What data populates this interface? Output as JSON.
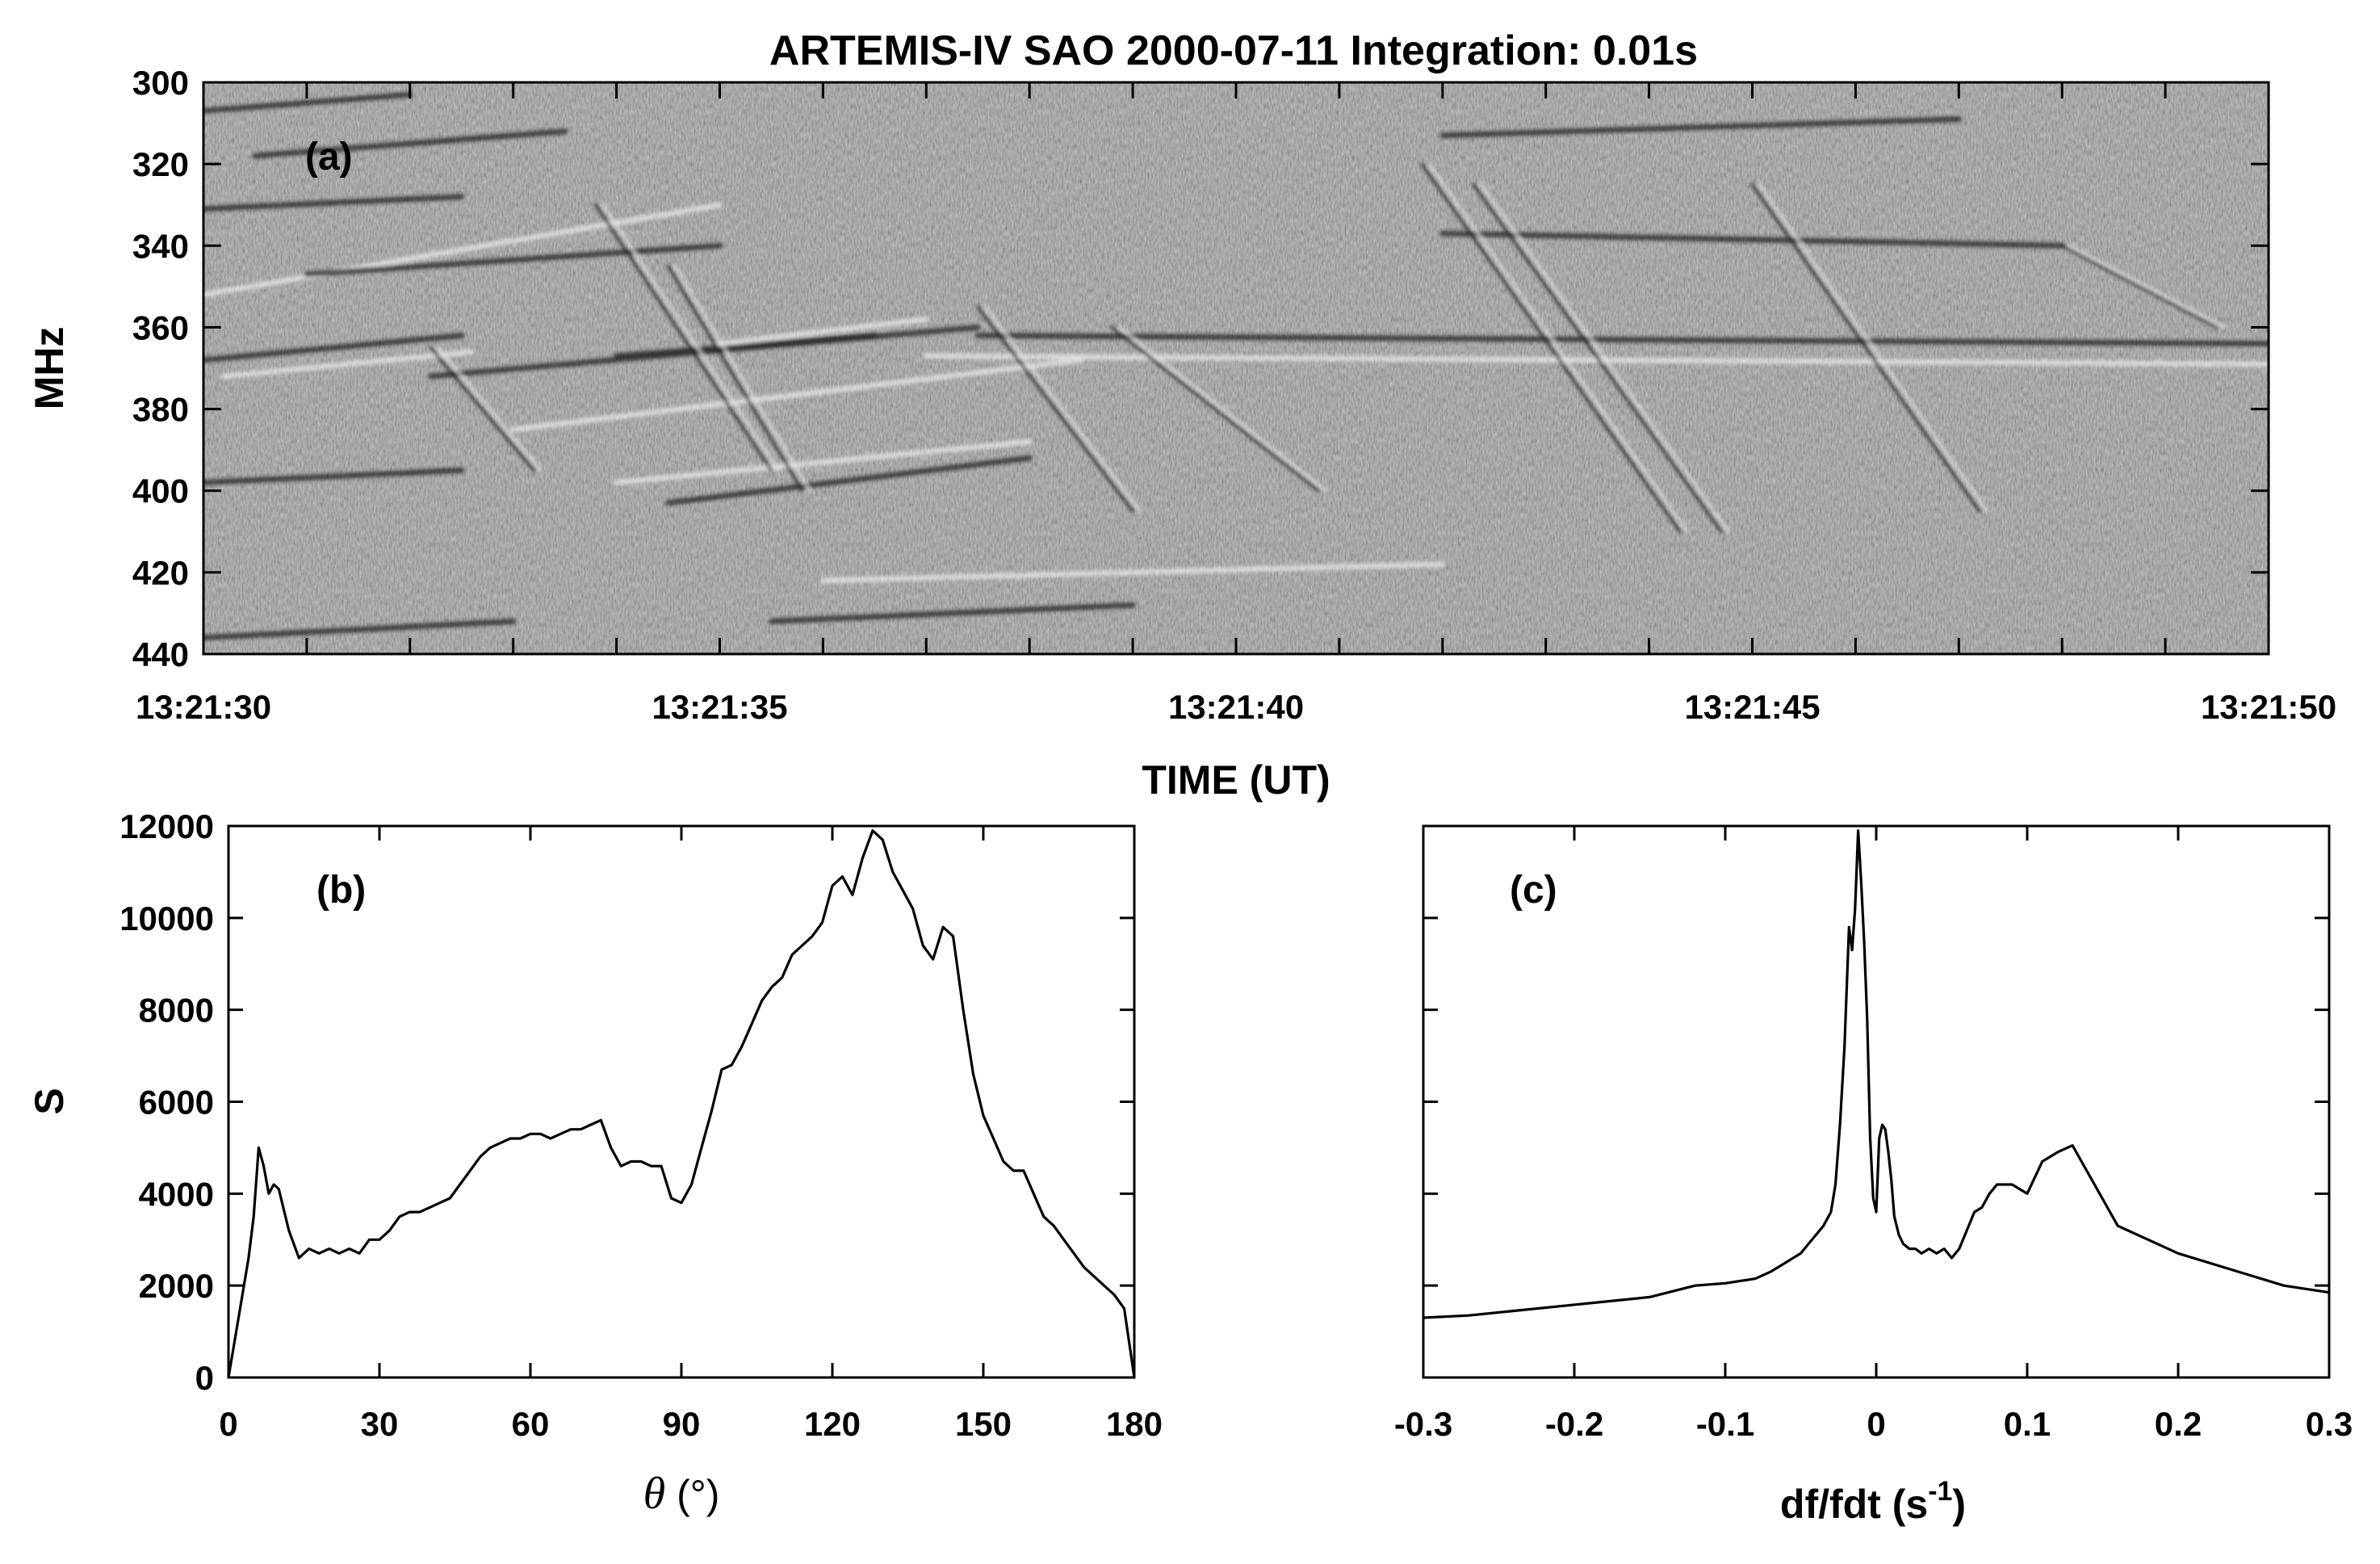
{
  "figure_title": "ARTEMIS-IV  SAO 2000-07-11   Integration: 0.01s",
  "chart_data": [
    {
      "id": "a",
      "type": "heatmap",
      "panel_label": "(a)",
      "xlabel": "TIME (UT)",
      "ylabel": "MHz",
      "x_ticks": [
        "13:21:30",
        "13:21:35",
        "13:21:40",
        "13:21:45",
        "13:21:50"
      ],
      "xlim_seconds": [
        0,
        20
      ],
      "ylim": [
        300,
        440
      ],
      "y_inverted": true,
      "y_ticks": [
        300,
        320,
        340,
        360,
        380,
        400,
        420,
        440
      ],
      "colormap": "gray",
      "features": {
        "drifting_lanes": [
          {
            "t": [
              0.0,
              2.0
            ],
            "f": [
              307,
              303
            ],
            "tone": "dark"
          },
          {
            "t": [
              0.5,
              3.5
            ],
            "f": [
              318,
              312
            ],
            "tone": "dark"
          },
          {
            "t": [
              0.0,
              2.5
            ],
            "f": [
              331,
              328
            ],
            "tone": "dark"
          },
          {
            "t": [
              0.0,
              5.0
            ],
            "f": [
              352,
              330
            ],
            "tone": "light"
          },
          {
            "t": [
              1.0,
              5.0
            ],
            "f": [
              347,
              340
            ],
            "tone": "dark"
          },
          {
            "t": [
              0.0,
              2.5
            ],
            "f": [
              368,
              362
            ],
            "tone": "dark"
          },
          {
            "t": [
              0.2,
              2.6
            ],
            "f": [
              372,
              366
            ],
            "tone": "light"
          },
          {
            "t": [
              2.2,
              7.5
            ],
            "f": [
              372,
              360
            ],
            "tone": "dark"
          },
          {
            "t": [
              4.0,
              6.5
            ],
            "f": [
              367,
              362
            ],
            "tone": "dark"
          },
          {
            "t": [
              5.0,
              7.0
            ],
            "f": [
              364,
              358
            ],
            "tone": "light"
          },
          {
            "t": [
              3.0,
              8.5
            ],
            "f": [
              385,
              368
            ],
            "tone": "light"
          },
          {
            "t": [
              0.0,
              2.5
            ],
            "f": [
              398,
              395
            ],
            "tone": "dark"
          },
          {
            "t": [
              4.5,
              8.0
            ],
            "f": [
              403,
              392
            ],
            "tone": "dark"
          },
          {
            "t": [
              4.0,
              8.0
            ],
            "f": [
              398,
              388
            ],
            "tone": "light"
          },
          {
            "t": [
              7.5,
              20.0
            ],
            "f": [
              362,
              364
            ],
            "tone": "dark"
          },
          {
            "t": [
              7.0,
              20.0
            ],
            "f": [
              367,
              369
            ],
            "tone": "light"
          },
          {
            "t": [
              12.0,
              18.0
            ],
            "f": [
              337,
              340
            ],
            "tone": "dark"
          },
          {
            "t": [
              0.0,
              3.0
            ],
            "f": [
              436,
              432
            ],
            "tone": "dark"
          },
          {
            "t": [
              5.5,
              9.0
            ],
            "f": [
              432,
              428
            ],
            "tone": "dark"
          },
          {
            "t": [
              6.0,
              12.0
            ],
            "f": [
              422,
              418
            ],
            "tone": "light"
          },
          {
            "t": [
              12.0,
              17.0
            ],
            "f": [
              313,
              309
            ],
            "tone": "dark"
          }
        ],
        "drifting_stripes": [
          {
            "t": [
              2.2,
              3.2
            ],
            "f": [
              365,
              395
            ]
          },
          {
            "t": [
              3.8,
              5.5
            ],
            "f": [
              330,
              395
            ]
          },
          {
            "t": [
              4.5,
              5.8
            ],
            "f": [
              345,
              400
            ]
          },
          {
            "t": [
              7.5,
              9.0
            ],
            "f": [
              355,
              405
            ]
          },
          {
            "t": [
              8.8,
              10.8
            ],
            "f": [
              360,
              400
            ]
          },
          {
            "t": [
              11.8,
              14.3
            ],
            "f": [
              320,
              410
            ]
          },
          {
            "t": [
              12.3,
              14.7
            ],
            "f": [
              325,
              410
            ]
          },
          {
            "t": [
              15.0,
              17.2
            ],
            "f": [
              325,
              405
            ]
          },
          {
            "t": [
              18.0,
              19.5
            ],
            "f": [
              340,
              360
            ]
          }
        ]
      }
    },
    {
      "id": "b",
      "type": "line",
      "panel_label": "(b)",
      "xlabel_symbol": "θ",
      "xlabel_unit": "(°)",
      "ylabel": "S",
      "xlim": [
        0,
        180
      ],
      "ylim": [
        0,
        12000
      ],
      "x_ticks": [
        0,
        30,
        60,
        90,
        120,
        150,
        180
      ],
      "y_ticks": [
        0,
        2000,
        4000,
        6000,
        8000,
        10000,
        12000
      ],
      "x": [
        0,
        2,
        4,
        5,
        6,
        7,
        8,
        9,
        10,
        12,
        14,
        16,
        18,
        20,
        22,
        24,
        26,
        28,
        30,
        32,
        34,
        36,
        38,
        40,
        42,
        44,
        46,
        48,
        50,
        52,
        54,
        56,
        58,
        60,
        62,
        64,
        66,
        68,
        70,
        72,
        74,
        76,
        78,
        80,
        82,
        84,
        86,
        88,
        90,
        92,
        94,
        96,
        98,
        100,
        102,
        104,
        106,
        108,
        110,
        112,
        114,
        116,
        118,
        120,
        122,
        124,
        126,
        128,
        130,
        132,
        134,
        136,
        138,
        140,
        142,
        144,
        146,
        148,
        150,
        152,
        154,
        156,
        158,
        160,
        162,
        164,
        166,
        168,
        170,
        172,
        174,
        176,
        178,
        180
      ],
      "y": [
        0,
        1300,
        2600,
        3500,
        5000,
        4600,
        4000,
        4200,
        4100,
        3200,
        2600,
        2800,
        2700,
        2800,
        2700,
        2800,
        2700,
        3000,
        3000,
        3200,
        3500,
        3600,
        3600,
        3700,
        3800,
        3900,
        4200,
        4500,
        4800,
        5000,
        5100,
        5200,
        5200,
        5300,
        5300,
        5200,
        5300,
        5400,
        5400,
        5500,
        5600,
        5000,
        4600,
        4700,
        4700,
        4600,
        4600,
        3900,
        3800,
        4200,
        5000,
        5800,
        6700,
        6800,
        7200,
        7700,
        8200,
        8500,
        8700,
        9200,
        9400,
        9600,
        9900,
        10700,
        10900,
        10500,
        11300,
        11900,
        11700,
        11000,
        10600,
        10200,
        9400,
        9100,
        9800,
        9600,
        8000,
        6600,
        5700,
        5200,
        4700,
        4500,
        4500,
        4000,
        3500,
        3300,
        3000,
        2700,
        2400,
        2200,
        2000,
        1800,
        1500,
        0
      ]
    },
    {
      "id": "c",
      "type": "line",
      "panel_label": "(c)",
      "xlabel_main": "df/fdt (s",
      "xlabel_sup": "-1",
      "xlabel_close": ")",
      "xlim": [
        -0.3,
        0.3
      ],
      "ylim": [
        0,
        12000
      ],
      "x_ticks": [
        "-0.3",
        "-0.2",
        "-0.1",
        "0",
        "0.1",
        "0.2",
        "0.3"
      ],
      "x": [
        -0.3,
        -0.27,
        -0.24,
        -0.21,
        -0.18,
        -0.15,
        -0.12,
        -0.1,
        -0.08,
        -0.07,
        -0.06,
        -0.05,
        -0.045,
        -0.04,
        -0.035,
        -0.03,
        -0.027,
        -0.024,
        -0.021,
        -0.018,
        -0.016,
        -0.014,
        -0.012,
        -0.01,
        -0.008,
        -0.006,
        -0.004,
        -0.002,
        0.0,
        0.002,
        0.004,
        0.006,
        0.008,
        0.01,
        0.012,
        0.015,
        0.018,
        0.022,
        0.026,
        0.03,
        0.035,
        0.04,
        0.045,
        0.05,
        0.055,
        0.06,
        0.065,
        0.07,
        0.075,
        0.08,
        0.09,
        0.1,
        0.11,
        0.12,
        0.13,
        0.16,
        0.2,
        0.24,
        0.27,
        0.3
      ],
      "y": [
        1300,
        1350,
        1450,
        1550,
        1650,
        1750,
        2000,
        2050,
        2150,
        2300,
        2500,
        2700,
        2900,
        3100,
        3300,
        3600,
        4200,
        5500,
        7200,
        9800,
        9300,
        10200,
        11900,
        10800,
        9500,
        7800,
        5200,
        3900,
        3600,
        5200,
        5500,
        5400,
        4900,
        4300,
        3500,
        3100,
        2900,
        2800,
        2800,
        2700,
        2800,
        2700,
        2800,
        2600,
        2800,
        3200,
        3600,
        3700,
        4000,
        4200,
        4200,
        4000,
        4700,
        4900,
        5050,
        3300,
        2700,
        2300,
        2000,
        1850
      ]
    }
  ]
}
